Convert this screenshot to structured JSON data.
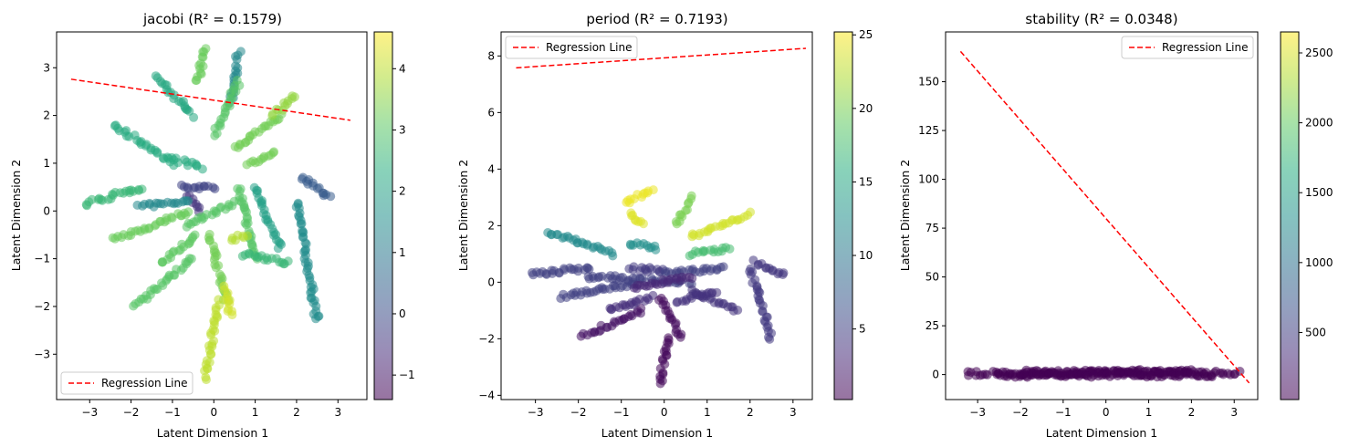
{
  "chart_data": [
    {
      "type": "scatter",
      "title": "jacobi (R² = 0.1579)",
      "xlabel": "Latent Dimension 1",
      "ylabel": "Latent Dimension 2",
      "xlim": [
        -3.8,
        3.7
      ],
      "ylim": [
        -3.95,
        3.75
      ],
      "xticks": [
        "-3",
        "-2",
        "-1",
        "0",
        "1",
        "2",
        "3"
      ],
      "yticks": [
        "-3",
        "-2",
        "-1",
        "0",
        "1",
        "2",
        "3"
      ],
      "xtick_values": [
        -3,
        -2,
        -1,
        0,
        1,
        2,
        3
      ],
      "ytick_values": [
        -3,
        -2,
        -1,
        0,
        1,
        2,
        3
      ],
      "colorbar": {
        "min": -1.4,
        "max": 4.6,
        "ticks": [
          -1,
          0,
          1,
          2,
          3,
          4
        ],
        "tick_labels": [
          "−1",
          "0",
          "1",
          "2",
          "3",
          "4"
        ]
      },
      "colormap": "viridis",
      "legend": {
        "label": "Regression Line",
        "placement": "lower-left"
      },
      "regression_line": {
        "x": [
          -3.45,
          3.3
        ],
        "y": [
          2.76,
          1.9
        ]
      },
      "clusters": [
        {
          "x0": -0.6,
          "y0": 0.35,
          "x1": -0.35,
          "y1": 0.0,
          "c": -0.5
        },
        {
          "x0": -0.8,
          "y0": 0.5,
          "x1": 0.0,
          "y1": 0.5,
          "c": -0.2
        },
        {
          "x0": -1.8,
          "y0": 0.1,
          "x1": -0.6,
          "y1": 0.2,
          "c": 1.4
        },
        {
          "x0": -3.1,
          "y0": 0.15,
          "x1": -1.7,
          "y1": 0.5,
          "c": 2.6
        },
        {
          "x0": -2.4,
          "y0": 1.8,
          "x1": -1.0,
          "y1": 1.0,
          "c": 2.3
        },
        {
          "x0": -1.4,
          "y0": 2.8,
          "x1": -0.5,
          "y1": 2.0,
          "c": 2.2
        },
        {
          "x0": -0.4,
          "y0": 2.7,
          "x1": -0.2,
          "y1": 3.4,
          "c": 3.2
        },
        {
          "x0": 0.6,
          "y0": 3.3,
          "x1": 0.4,
          "y1": 2.3,
          "c": 1.4
        },
        {
          "x0": 0.0,
          "y0": 1.6,
          "x1": 0.6,
          "y1": 2.7,
          "c": 3.0
        },
        {
          "x0": 0.5,
          "y0": 1.3,
          "x1": 1.6,
          "y1": 2.0,
          "c": 3.3
        },
        {
          "x0": 1.4,
          "y0": 2.0,
          "x1": 2.0,
          "y1": 2.4,
          "c": 3.6
        },
        {
          "x0": 0.8,
          "y0": 1.0,
          "x1": 1.5,
          "y1": 1.2,
          "c": 3.3
        },
        {
          "x0": -1.0,
          "y0": 1.1,
          "x1": -0.3,
          "y1": 0.9,
          "c": 2.3
        },
        {
          "x0": 0.6,
          "y0": 0.5,
          "x1": 1.0,
          "y1": -1.0,
          "c": 3.0
        },
        {
          "x0": 1.0,
          "y0": 0.5,
          "x1": 1.6,
          "y1": -0.8,
          "c": 2.0
        },
        {
          "x0": 2.0,
          "y0": 0.2,
          "x1": 2.5,
          "y1": -2.3,
          "c": 1.5
        },
        {
          "x0": 2.1,
          "y0": 0.7,
          "x1": 2.8,
          "y1": 0.3,
          "c": 0.3
        },
        {
          "x0": 0.7,
          "y0": -0.9,
          "x1": 1.8,
          "y1": -1.1,
          "c": 2.6
        },
        {
          "x0": -2.4,
          "y0": -0.6,
          "x1": -0.6,
          "y1": 0.0,
          "c": 3.2
        },
        {
          "x0": -1.9,
          "y0": -2.0,
          "x1": -0.5,
          "y1": -1.0,
          "c": 3.0
        },
        {
          "x0": -1.3,
          "y0": -1.1,
          "x1": -0.4,
          "y1": -0.5,
          "c": 3.1
        },
        {
          "x0": -0.1,
          "y0": -0.5,
          "x1": 0.3,
          "y1": -1.9,
          "c": 3.3
        },
        {
          "x0": 0.3,
          "y0": -1.6,
          "x1": 0.4,
          "y1": -2.2,
          "c": 4.2
        },
        {
          "x0": 0.1,
          "y0": -1.9,
          "x1": -0.2,
          "y1": -3.5,
          "c": 4.0
        },
        {
          "x0": -0.7,
          "y0": -0.3,
          "x1": 0.6,
          "y1": 0.2,
          "c": 3.0
        },
        {
          "x0": 0.4,
          "y0": -0.6,
          "x1": 0.8,
          "y1": -0.5,
          "c": 3.9
        }
      ]
    },
    {
      "type": "scatter",
      "title": "period (R² = 0.7193)",
      "xlabel": "Latent Dimension 1",
      "ylabel": "Latent Dimension 2",
      "xlim": [
        -3.8,
        3.45
      ],
      "ylim": [
        -4.15,
        8.85
      ],
      "xticks": [
        "-3",
        "-2",
        "-1",
        "0",
        "1",
        "2",
        "3"
      ],
      "yticks": [
        "-4",
        "-2",
        "0",
        "2",
        "4",
        "6",
        "8"
      ],
      "xtick_values": [
        -3,
        -2,
        -1,
        0,
        1,
        2,
        3
      ],
      "ytick_values": [
        -4,
        -2,
        0,
        2,
        4,
        6,
        8
      ],
      "colorbar": {
        "min": 0.2,
        "max": 25.2,
        "ticks": [
          5,
          10,
          15,
          20,
          25
        ],
        "tick_labels": [
          "5",
          "10",
          "15",
          "20",
          "25"
        ]
      },
      "colormap": "viridis",
      "legend": {
        "label": "Regression Line",
        "placement": "upper-left"
      },
      "regression_line": {
        "x": [
          -3.45,
          3.3
        ],
        "y": [
          7.58,
          8.27
        ]
      },
      "clusters": [
        {
          "x0": -0.9,
          "y0": 2.8,
          "x1": -0.3,
          "y1": 3.3,
          "c": 24.5
        },
        {
          "x0": -0.8,
          "y0": 2.5,
          "x1": -0.5,
          "y1": 2.0,
          "c": 24.0
        },
        {
          "x0": 0.3,
          "y0": 2.0,
          "x1": 0.6,
          "y1": 3.0,
          "c": 20.0
        },
        {
          "x0": 0.6,
          "y0": 1.6,
          "x1": 2.0,
          "y1": 2.4,
          "c": 23.5
        },
        {
          "x0": 0.6,
          "y0": 1.0,
          "x1": 1.5,
          "y1": 1.2,
          "c": 17.5
        },
        {
          "x0": -2.7,
          "y0": 1.8,
          "x1": -1.2,
          "y1": 1.0,
          "c": 12.0
        },
        {
          "x0": -0.8,
          "y0": 1.4,
          "x1": -0.2,
          "y1": 1.2,
          "c": 12.5
        },
        {
          "x0": -3.1,
          "y0": 0.3,
          "x1": -1.7,
          "y1": 0.5,
          "c": 5.0
        },
        {
          "x0": -1.8,
          "y0": 0.2,
          "x1": 0.6,
          "y1": 0.0,
          "c": 5.0
        },
        {
          "x0": -0.8,
          "y0": 0.5,
          "x1": 0.0,
          "y1": 0.4,
          "c": 4.5
        },
        {
          "x0": 0.0,
          "y0": 0.3,
          "x1": 1.4,
          "y1": 0.5,
          "c": 5.0
        },
        {
          "x0": 2.0,
          "y0": 0.5,
          "x1": 2.5,
          "y1": -2.0,
          "c": 4.5
        },
        {
          "x0": 2.1,
          "y0": 0.7,
          "x1": 2.8,
          "y1": 0.3,
          "c": 4.2
        },
        {
          "x0": 0.6,
          "y0": -0.3,
          "x1": 1.7,
          "y1": -1.0,
          "c": 4.0
        },
        {
          "x0": -2.4,
          "y0": -0.5,
          "x1": -0.6,
          "y1": 0.0,
          "c": 5.0
        },
        {
          "x0": -1.9,
          "y0": -1.9,
          "x1": -0.5,
          "y1": -1.0,
          "c": 1.5
        },
        {
          "x0": -1.3,
          "y0": -1.0,
          "x1": -0.3,
          "y1": -0.5,
          "c": 3.5
        },
        {
          "x0": -0.1,
          "y0": -0.5,
          "x1": 0.4,
          "y1": -2.0,
          "c": 1.0
        },
        {
          "x0": 0.1,
          "y0": -1.9,
          "x1": -0.1,
          "y1": -3.6,
          "c": 0.8
        },
        {
          "x0": -0.7,
          "y0": -0.2,
          "x1": 0.6,
          "y1": 0.2,
          "c": 3.0
        },
        {
          "x0": 0.3,
          "y0": -0.7,
          "x1": 1.2,
          "y1": -0.3,
          "c": 3.8
        }
      ]
    },
    {
      "type": "scatter",
      "title": "stability (R² = 0.0348)",
      "xlabel": "Latent Dimension 1",
      "ylabel": "Latent Dimension 2",
      "xlim": [
        -3.75,
        3.55
      ],
      "ylim": [
        -12.8,
        175.5
      ],
      "xticks": [
        "-3",
        "-2",
        "-1",
        "0",
        "1",
        "2",
        "3"
      ],
      "yticks": [
        "0",
        "25",
        "50",
        "75",
        "100",
        "125",
        "150"
      ],
      "xtick_values": [
        -3,
        -2,
        -1,
        0,
        1,
        2,
        3
      ],
      "ytick_values": [
        0,
        25,
        50,
        75,
        100,
        125,
        150
      ],
      "colorbar": {
        "min": 20,
        "max": 2650,
        "ticks": [
          500,
          1000,
          1500,
          2000,
          2500
        ],
        "tick_labels": [
          "500",
          "1000",
          "1500",
          "2000",
          "2500"
        ]
      },
      "colormap": "viridis",
      "legend": {
        "label": "Regression Line",
        "placement": "upper-right"
      },
      "regression_line": {
        "x": [
          -3.4,
          3.35
        ],
        "y": [
          165.5,
          -4.3
        ]
      },
      "clusters": [
        {
          "x0": -3.25,
          "y0": 0.5,
          "x1": 3.1,
          "y1": 0.8,
          "c": 20
        },
        {
          "x0": -2.0,
          "y0": 1.2,
          "x1": 2.0,
          "y1": 1.5,
          "c": 20
        },
        {
          "x0": -2.5,
          "y0": -0.3,
          "x1": 2.5,
          "y1": 0.0,
          "c": 20
        }
      ]
    }
  ]
}
